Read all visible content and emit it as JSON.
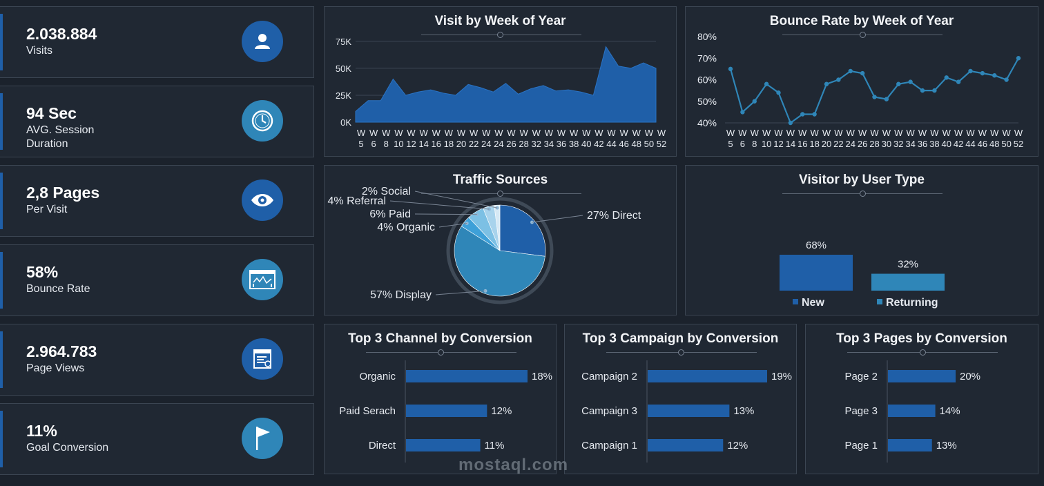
{
  "kpis": [
    {
      "value": "2.038.884",
      "label": "Visits",
      "icon": "user-icon",
      "color": "#1f5fa8"
    },
    {
      "value": "94 Sec",
      "label": "AVG. Session Duration",
      "icon": "clock-icon",
      "color": "#2f86b8"
    },
    {
      "value": "2,8 Pages",
      "label": "Per Visit",
      "icon": "eye-icon",
      "color": "#1f5fa8"
    },
    {
      "value": "58%",
      "label": "Bounce Rate",
      "icon": "browser-chart-icon",
      "color": "#2f86b8"
    },
    {
      "value": "2.964.783",
      "label": "Page Views",
      "icon": "document-icon",
      "color": "#1f5fa8"
    },
    {
      "value": "11%",
      "label": "Goal Conversion",
      "icon": "flag-icon",
      "color": "#2f86b8"
    }
  ],
  "chart_data": [
    {
      "type": "area",
      "title": "Visit by Week of Year",
      "categories": [
        "W 5",
        "W 6",
        "W 8",
        "W 10",
        "W 12",
        "W 14",
        "W 16",
        "W 18",
        "W 20",
        "W 22",
        "W 24",
        "W 24",
        "W 26",
        "W 28",
        "W 32",
        "W 34",
        "W 36",
        "W 38",
        "W 40",
        "W 42",
        "W 44",
        "W 46",
        "W 48",
        "W 50",
        "W 52"
      ],
      "x_tick_labels": [
        "W 5",
        "W 6",
        "W 8",
        "W 10",
        "W 12",
        "W 14",
        "W 16",
        "W 18",
        "W 20",
        "W 22",
        "W 24",
        "W 24",
        "W 26",
        "W 28",
        "W 32",
        "W 34",
        "W 36",
        "W 38",
        "W 40",
        "W 42",
        "W 44",
        "W 46",
        "W 48",
        "W 50",
        "W 52"
      ],
      "values": [
        10000,
        20000,
        20000,
        40000,
        25000,
        28000,
        30000,
        27000,
        25000,
        35000,
        32000,
        28000,
        36000,
        26000,
        31000,
        34000,
        29000,
        30000,
        28000,
        25000,
        70000,
        52000,
        50000,
        55000,
        50000
      ],
      "y_ticks": [
        "0K",
        "25K",
        "50K",
        "75K"
      ],
      "ylim": [
        0,
        80000
      ],
      "color": "#1f5fa8"
    },
    {
      "type": "line",
      "title": "Bounce Rate by Week of Year",
      "categories": [
        "W 5",
        "W 6",
        "W 8",
        "W 10",
        "W 12",
        "W 14",
        "W 16",
        "W 18",
        "W 20",
        "W 22",
        "W 24",
        "W 26",
        "W 28",
        "W 30",
        "W 32",
        "W 34",
        "W 36",
        "W 38",
        "W 40",
        "W 42",
        "W 44",
        "W 46",
        "W 48",
        "W 50",
        "W 52"
      ],
      "values": [
        65,
        45,
        50,
        58,
        54,
        40,
        44,
        44,
        58,
        60,
        64,
        63,
        52,
        51,
        58,
        59,
        55,
        55,
        61,
        59,
        64,
        63,
        62,
        60,
        70
      ],
      "y_ticks": [
        "40%",
        "50%",
        "60%",
        "70%",
        "80%"
      ],
      "ylim": [
        40,
        80
      ],
      "color": "#2f86b8"
    },
    {
      "type": "pie",
      "title": "Traffic Sources",
      "slices": [
        {
          "label": "Direct",
          "value": 27,
          "text": "27% Direct",
          "color": "#1f5fa8"
        },
        {
          "label": "Display",
          "value": 57,
          "text": "57% Display",
          "color": "#2f86b8"
        },
        {
          "label": "Organic",
          "value": 4,
          "text": "4% Organic",
          "color": "#3ea0d8"
        },
        {
          "label": "Paid",
          "value": 6,
          "text": "6% Paid",
          "color": "#7cc0e4"
        },
        {
          "label": "Referral",
          "value": 4,
          "text": "4% Referral",
          "color": "#a8d3ec"
        },
        {
          "label": "Social",
          "value": 2,
          "text": "2% Social",
          "color": "#d6e9f5"
        }
      ]
    },
    {
      "type": "bar",
      "title": "Visitor by User Type",
      "categories": [
        "New",
        "Returning"
      ],
      "values": [
        68,
        32
      ],
      "value_labels": [
        "68%",
        "32%"
      ],
      "colors": [
        "#1f5fa8",
        "#2f86b8"
      ],
      "legend": "bottom"
    },
    {
      "type": "bar",
      "orientation": "horizontal",
      "title": "Top 3 Channel by Conversion",
      "categories": [
        "Organic",
        "Paid Serach",
        "Direct"
      ],
      "values": [
        18,
        12,
        11
      ],
      "value_labels": [
        "18%",
        "12%",
        "11%"
      ],
      "color": "#1f5fa8"
    },
    {
      "type": "bar",
      "orientation": "horizontal",
      "title": "Top 3 Campaign by Conversion",
      "categories": [
        "Campaign 2",
        "Campaign 3",
        "Campaign 1"
      ],
      "values": [
        19,
        13,
        12
      ],
      "value_labels": [
        "19%",
        "13%",
        "12%"
      ],
      "color": "#1f5fa8"
    },
    {
      "type": "bar",
      "orientation": "horizontal",
      "title": "Top 3 Pages by Conversion",
      "categories": [
        "Page 2",
        "Page 3",
        "Page 1"
      ],
      "values": [
        20,
        14,
        13
      ],
      "value_labels": [
        "20%",
        "14%",
        "13%"
      ],
      "color": "#1f5fa8"
    }
  ],
  "watermark": "mostaql.com"
}
